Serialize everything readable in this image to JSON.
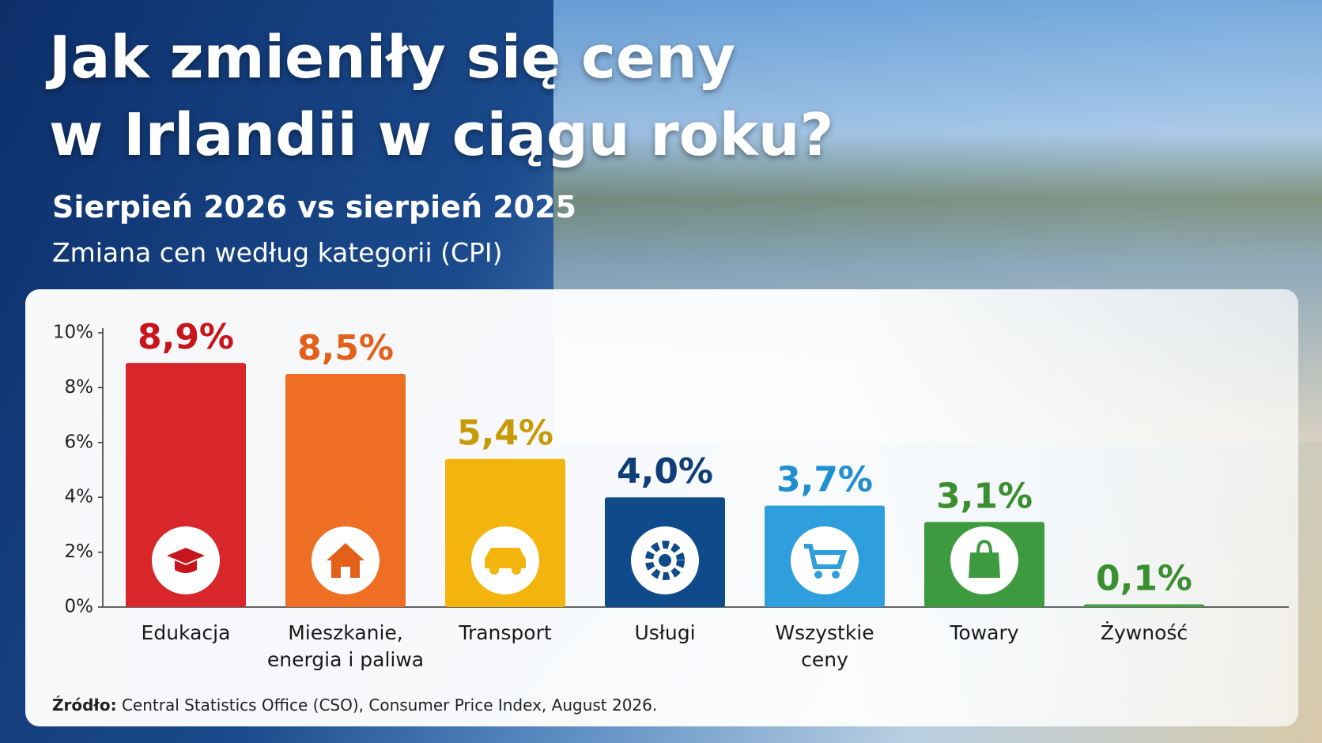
{
  "header": {
    "title": [
      "Jak zmieniły się ceny",
      "w Irlandii w ciągu roku?"
    ],
    "subtitle": "Sierpień 2026 vs sierpień 2025",
    "description": "Zmiana cen według kategorii (CPI)"
  },
  "chart_data": {
    "type": "bar",
    "categories": [
      "Edukacja",
      "Mieszkanie, energia i paliwa",
      "Transport",
      "Usługi",
      "Wszystkie ceny",
      "Towary",
      "Żywność"
    ],
    "values": [
      8.9,
      8.5,
      5.4,
      4.0,
      3.7,
      3.1,
      0.1
    ],
    "value_labels": [
      "8,9%",
      "8,5%",
      "5,4%",
      "4,0%",
      "3,7%",
      "3,1%",
      "0,1%"
    ],
    "colors": [
      "#d8262a",
      "#ee6f24",
      "#f4b40e",
      "#0f4a8a",
      "#2e9fdc",
      "#3d9a3e",
      "#43a047"
    ],
    "label_colors": [
      "#c8151b",
      "#e2601a",
      "#c79a06",
      "#0f3e78",
      "#1f8fd0",
      "#3a8f2f",
      "#3a8f2f"
    ],
    "ylim": [
      0,
      10
    ],
    "yticks": [
      {
        "value": 0,
        "label": "0%"
      },
      {
        "value": 2,
        "label": "2%"
      },
      {
        "value": 4,
        "label": "4%"
      },
      {
        "value": 6,
        "label": "6%"
      },
      {
        "value": 8,
        "label": "8%"
      },
      {
        "value": 10,
        "label": "10%"
      }
    ]
  },
  "footer": {
    "source_label": "Źródło:",
    "source_text": "Central Statistics Office (CSO), Consumer Price Index, August 2026."
  }
}
